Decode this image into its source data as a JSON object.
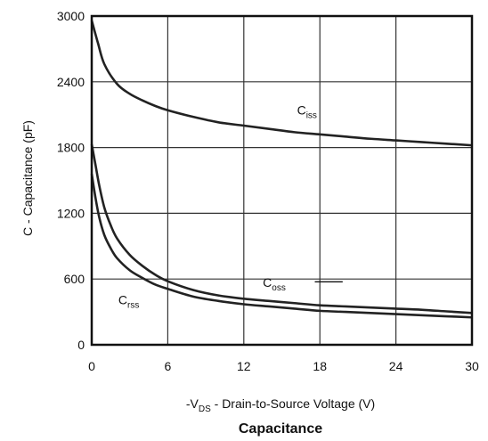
{
  "chart_data": {
    "type": "line",
    "caption": "Capacitance",
    "xlabel": {
      "prefix": "-V",
      "sub": "DS",
      "suffix": " - Drain-to-Source Voltage (V)"
    },
    "ylabel": "C - Capacitance (pF)",
    "xlim": [
      0,
      30
    ],
    "ylim": [
      0,
      3000
    ],
    "xticks": [
      "0",
      "6",
      "12",
      "18",
      "24",
      "30"
    ],
    "yticks": [
      "0",
      "600",
      "1200",
      "1800",
      "2400",
      "3000"
    ],
    "grid": true,
    "series": [
      {
        "name": "Ciss",
        "label_main": "C",
        "label_sub": "iss",
        "color": "#222222",
        "x": [
          0,
          0.5,
          1,
          2,
          3,
          4,
          5,
          6,
          8,
          10,
          12,
          14,
          16,
          18,
          20,
          22,
          24,
          26,
          28,
          30
        ],
        "y": [
          2960,
          2750,
          2560,
          2380,
          2290,
          2230,
          2180,
          2140,
          2080,
          2030,
          2000,
          1970,
          1940,
          1920,
          1900,
          1880,
          1865,
          1850,
          1835,
          1820
        ]
      },
      {
        "name": "Coss",
        "label_main": "C",
        "label_sub": "oss",
        "color": "#222222",
        "x": [
          0,
          0.3,
          0.6,
          1,
          1.5,
          2,
          3,
          4,
          5,
          6,
          8,
          10,
          12,
          14,
          16,
          18,
          20,
          22,
          24,
          26,
          28,
          30
        ],
        "y": [
          1830,
          1640,
          1450,
          1250,
          1090,
          970,
          820,
          720,
          640,
          580,
          500,
          450,
          420,
          400,
          380,
          360,
          350,
          340,
          330,
          320,
          305,
          290
        ]
      },
      {
        "name": "Crss",
        "label_main": "C",
        "label_sub": "rss",
        "color": "#222222",
        "x": [
          0,
          0.3,
          0.6,
          1,
          1.5,
          2,
          3,
          4,
          5,
          6,
          8,
          10,
          12,
          14,
          16,
          18,
          20,
          22,
          24,
          26,
          28,
          30
        ],
        "y": [
          1560,
          1340,
          1160,
          1000,
          880,
          790,
          680,
          610,
          550,
          510,
          440,
          400,
          370,
          350,
          330,
          310,
          300,
          290,
          280,
          270,
          260,
          250
        ]
      }
    ]
  }
}
